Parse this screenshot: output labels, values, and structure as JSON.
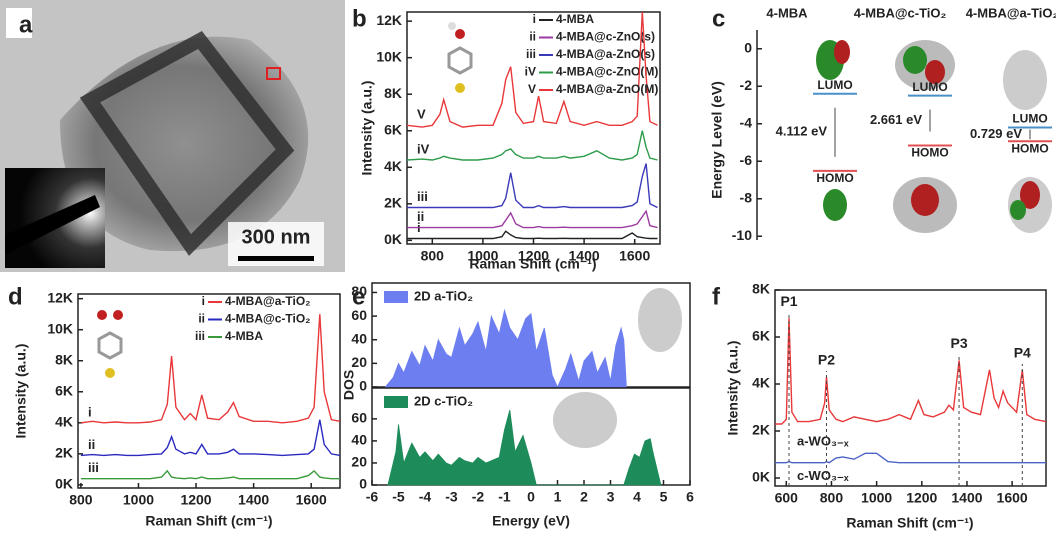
{
  "panel_labels": [
    "a",
    "b",
    "c",
    "d",
    "e",
    "f"
  ],
  "image_a": {
    "scale_bar": "300 nm"
  },
  "chart_data": [
    {
      "type": "line",
      "xlabel": "Raman Shift (cm⁻¹)",
      "ylabel": "Intensity (a.u.)",
      "legend": "upper right",
      "xlim": [
        700,
        1700
      ],
      "ylim": [
        -200,
        12500
      ],
      "xticks": [
        800,
        1000,
        1200,
        1400,
        1600
      ],
      "yticks": [
        {
          "value": 0,
          "label": "0K"
        },
        {
          "value": 2000,
          "label": "2K"
        },
        {
          "value": 4000,
          "label": "4K"
        },
        {
          "value": 6000,
          "label": "6K"
        },
        {
          "value": 8000,
          "label": "8K"
        },
        {
          "value": 10000,
          "label": "10K"
        },
        {
          "value": 12000,
          "label": "12K"
        }
      ],
      "x": [
        700,
        760,
        800,
        830,
        845,
        870,
        920,
        980,
        1040,
        1075,
        1090,
        1110,
        1130,
        1160,
        1200,
        1220,
        1240,
        1290,
        1320,
        1345,
        1400,
        1450,
        1500,
        1550,
        1590,
        1610,
        1630,
        1645,
        1660,
        1690
      ],
      "series": [
        {
          "tag": "i",
          "name": "4-MBA",
          "color": "#222222",
          "values": [
            100,
            100,
            100,
            100,
            100,
            100,
            100,
            100,
            100,
            200,
            500,
            300,
            150,
            100,
            100,
            120,
            100,
            100,
            110,
            100,
            100,
            100,
            100,
            100,
            400,
            200,
            150,
            120,
            100,
            100
          ]
        },
        {
          "tag": "ii",
          "name": "4-MBA@c-ZnO(s)",
          "color": "#9b3aa0",
          "values": [
            700,
            700,
            700,
            700,
            700,
            700,
            700,
            700,
            700,
            800,
            1100,
            1500,
            900,
            700,
            700,
            750,
            700,
            700,
            720,
            700,
            700,
            700,
            700,
            700,
            800,
            900,
            1300,
            1600,
            800,
            700
          ]
        },
        {
          "tag": "iii",
          "name": "4-MBA@a-ZnO(s)",
          "color": "#3a3ab8",
          "values": [
            1800,
            1800,
            1800,
            1800,
            1800,
            1800,
            1800,
            1800,
            1800,
            1900,
            2300,
            3700,
            2200,
            1800,
            1800,
            1900,
            1800,
            1800,
            1850,
            1800,
            1800,
            1800,
            1800,
            1800,
            1900,
            2100,
            3500,
            4200,
            2000,
            1800
          ]
        },
        {
          "tag": "iV",
          "name": "4-MBA@c-ZnO(M)",
          "color": "#2e9c4a",
          "values": [
            4400,
            4450,
            4400,
            4500,
            4600,
            4500,
            4400,
            4400,
            4500,
            4700,
            4900,
            5000,
            4700,
            4500,
            4500,
            4600,
            4500,
            4500,
            4600,
            4500,
            4600,
            4900,
            4500,
            4400,
            4500,
            4700,
            6000,
            5100,
            4500,
            4400
          ]
        },
        {
          "tag": "V",
          "name": "4-MBA@a-ZnO(M)",
          "color": "#e8383a",
          "values": [
            6300,
            6200,
            6300,
            6900,
            7700,
            6500,
            6200,
            6300,
            6300,
            7500,
            8800,
            9500,
            7000,
            6400,
            6500,
            7900,
            6500,
            6400,
            7600,
            6500,
            6300,
            6500,
            6300,
            6300,
            6500,
            6800,
            12500,
            9000,
            6500,
            6300
          ]
        }
      ]
    },
    {
      "type": "energy-level",
      "ylabel": "Energy Level (eV)",
      "ylim": [
        -10.2,
        1
      ],
      "yticks": [
        0,
        -2,
        -4,
        -6,
        -8,
        -10
      ],
      "categories": [
        "4-MBA",
        "4-MBA@c-TiO₂",
        "4-MBA@a-TiO₂"
      ],
      "series": [
        {
          "name": "LUMO",
          "color": "#4a90c8",
          "values": [
            -2.4,
            -2.5,
            -4.2
          ]
        },
        {
          "name": "HOMO",
          "color": "#e05050",
          "values": [
            -6.51,
            -5.16,
            -4.93
          ]
        }
      ],
      "gap": {
        "values": [
          4.112,
          2.661,
          0.729
        ],
        "value_labels": [
          "4.112 eV",
          "2.661 eV",
          "0.729 eV"
        ]
      }
    },
    {
      "type": "line",
      "xlabel": "Raman Shift (cm⁻¹)",
      "ylabel": "Intensity (a.u.)",
      "legend": "upper right",
      "xlim": [
        790,
        1700
      ],
      "ylim": [
        -200,
        12300
      ],
      "xticks": [
        800,
        1000,
        1200,
        1400,
        1600
      ],
      "yticks": [
        {
          "value": 0,
          "label": "0K"
        },
        {
          "value": 2000,
          "label": "2K"
        },
        {
          "value": 4000,
          "label": "4K"
        },
        {
          "value": 6000,
          "label": "6K"
        },
        {
          "value": 8000,
          "label": "8K"
        },
        {
          "value": 10000,
          "label": "10K"
        },
        {
          "value": 12000,
          "label": "12K"
        }
      ],
      "x": [
        800,
        840,
        880,
        920,
        960,
        1000,
        1040,
        1080,
        1100,
        1115,
        1130,
        1160,
        1180,
        1200,
        1220,
        1240,
        1280,
        1310,
        1330,
        1350,
        1400,
        1450,
        1500,
        1550,
        1590,
        1610,
        1630,
        1645,
        1670,
        1700
      ],
      "series": [
        {
          "tag": "i",
          "name": "4-MBA@a-TiO₂",
          "color": "#e8383a",
          "values": [
            4000,
            4100,
            4000,
            4050,
            4000,
            4000,
            4050,
            4200,
            5200,
            8300,
            5000,
            4200,
            4600,
            4200,
            5800,
            4300,
            4200,
            4700,
            5300,
            4400,
            4100,
            4100,
            4000,
            4100,
            4300,
            5000,
            11000,
            6000,
            4200,
            4100
          ]
        },
        {
          "tag": "ii",
          "name": "4-MBA@c-TiO₂",
          "color": "#2a2ac0",
          "values": [
            1900,
            1950,
            1900,
            1950,
            1900,
            1900,
            1950,
            2000,
            2400,
            3100,
            2300,
            2000,
            2100,
            2000,
            2600,
            2000,
            2000,
            2100,
            2300,
            2000,
            2000,
            1950,
            1900,
            1950,
            2000,
            2300,
            4200,
            2600,
            2000,
            1900
          ]
        },
        {
          "tag": "iii",
          "name": "4-MBA",
          "color": "#3a9a3a",
          "values": [
            400,
            400,
            400,
            400,
            400,
            400,
            400,
            500,
            900,
            500,
            450,
            400,
            450,
            400,
            500,
            400,
            400,
            450,
            500,
            400,
            400,
            400,
            400,
            400,
            600,
            900,
            500,
            450,
            400,
            400
          ]
        }
      ]
    },
    {
      "type": "area",
      "ylabel": "DOS",
      "legend": "upper left",
      "xlim": [
        -6,
        6
      ],
      "ylim": [
        0,
        88
      ],
      "yticks": [
        0,
        20,
        40,
        60,
        80
      ],
      "x": [
        -5.5,
        -5.2,
        -5,
        -4.8,
        -4.5,
        -4.2,
        -4,
        -3.7,
        -3.5,
        -3.2,
        -3,
        -2.7,
        -2.5,
        -2.2,
        -2,
        -1.7,
        -1.5,
        -1.2,
        -1,
        -0.8,
        -0.5,
        -0.2,
        0,
        0.2,
        0.5,
        0.8,
        1,
        1.3,
        1.5,
        1.8,
        2,
        2.3,
        2.5,
        2.8,
        3,
        3.2,
        3.4,
        3.5,
        3.6
      ],
      "series": [
        {
          "name": "2D a-TiO₂",
          "color": "#6d7ff0",
          "values": [
            0,
            8,
            20,
            12,
            30,
            18,
            35,
            22,
            40,
            28,
            25,
            50,
            35,
            45,
            55,
            30,
            60,
            45,
            65,
            50,
            40,
            58,
            62,
            30,
            50,
            10,
            0,
            15,
            28,
            5,
            22,
            30,
            12,
            25,
            5,
            35,
            50,
            40,
            0
          ]
        }
      ]
    },
    {
      "type": "area",
      "xlabel": "Energy (eV)",
      "legend": "upper left",
      "xlim": [
        -6,
        6
      ],
      "ylim": [
        0,
        88
      ],
      "yticks": [
        0,
        20,
        40,
        60
      ],
      "xticks": [
        -6,
        -5,
        -4,
        -3,
        -2,
        -1,
        0,
        1,
        2,
        3,
        4,
        5,
        6
      ],
      "x": [
        -5.4,
        -5.1,
        -5,
        -4.8,
        -4.5,
        -4.2,
        -4,
        -3.7,
        -3.5,
        -3.2,
        -3,
        -2.7,
        -2.5,
        -2.2,
        -2,
        -1.7,
        -1.5,
        -1.2,
        -1,
        -0.8,
        -0.6,
        -0.3,
        0,
        0.2,
        3.5,
        3.7,
        3.9,
        4.1,
        4.3,
        4.5,
        4.6,
        4.8,
        4.9
      ],
      "series": [
        {
          "name": "2D c-TiO₂",
          "color": "#1e8c5a",
          "values": [
            0,
            30,
            55,
            20,
            38,
            25,
            30,
            22,
            28,
            20,
            18,
            25,
            22,
            20,
            25,
            20,
            22,
            25,
            50,
            68,
            30,
            45,
            20,
            0,
            0,
            15,
            28,
            25,
            40,
            42,
            30,
            10,
            0
          ]
        }
      ]
    },
    {
      "type": "line",
      "xlabel": "Raman Shift (cm⁻¹)",
      "ylabel": "Intensity (a.u.)",
      "xlim": [
        550,
        1750
      ],
      "ylim": [
        -340,
        8000
      ],
      "xticks": [
        600,
        800,
        1000,
        1200,
        1400,
        1600
      ],
      "yticks": [
        {
          "value": 0,
          "label": "0K"
        },
        {
          "value": 2000,
          "label": "2K"
        },
        {
          "value": 4000,
          "label": "4K"
        },
        {
          "value": 6000,
          "label": "6K"
        },
        {
          "value": 8000,
          "label": "8K"
        }
      ],
      "x": [
        550,
        580,
        600,
        612,
        625,
        650,
        700,
        750,
        770,
        778,
        790,
        820,
        850,
        900,
        950,
        1000,
        1050,
        1100,
        1150,
        1185,
        1210,
        1250,
        1300,
        1320,
        1340,
        1365,
        1385,
        1420,
        1460,
        1500,
        1520,
        1540,
        1560,
        1580,
        1600,
        1620,
        1645,
        1665,
        1700,
        1750
      ],
      "series": [
        {
          "name": "a-WO₃₋ₓ",
          "color": "#e8383a",
          "values": [
            2300,
            2300,
            2500,
            6800,
            2800,
            2400,
            2400,
            2500,
            3200,
            4300,
            2900,
            2500,
            2400,
            2600,
            2500,
            2400,
            2500,
            2700,
            2500,
            3300,
            2700,
            2600,
            2800,
            3100,
            2900,
            5000,
            3000,
            2800,
            2700,
            4600,
            3400,
            3000,
            3700,
            3200,
            3000,
            2800,
            4600,
            2700,
            2500,
            2400
          ]
        },
        {
          "name": "c-WO₃₋ₓ",
          "color": "#4a64c8",
          "values": [
            650,
            650,
            650,
            700,
            650,
            650,
            650,
            650,
            650,
            700,
            650,
            850,
            900,
            800,
            1050,
            1050,
            700,
            650,
            650,
            650,
            650,
            650,
            650,
            650,
            650,
            650,
            650,
            650,
            650,
            650,
            650,
            650,
            650,
            650,
            650,
            650,
            650,
            650,
            650,
            650
          ]
        }
      ],
      "peaks": [
        {
          "label": "P1",
          "x": 612
        },
        {
          "label": "P2",
          "x": 778
        },
        {
          "label": "P3",
          "x": 1365
        },
        {
          "label": "P4",
          "x": 1645
        }
      ]
    }
  ]
}
